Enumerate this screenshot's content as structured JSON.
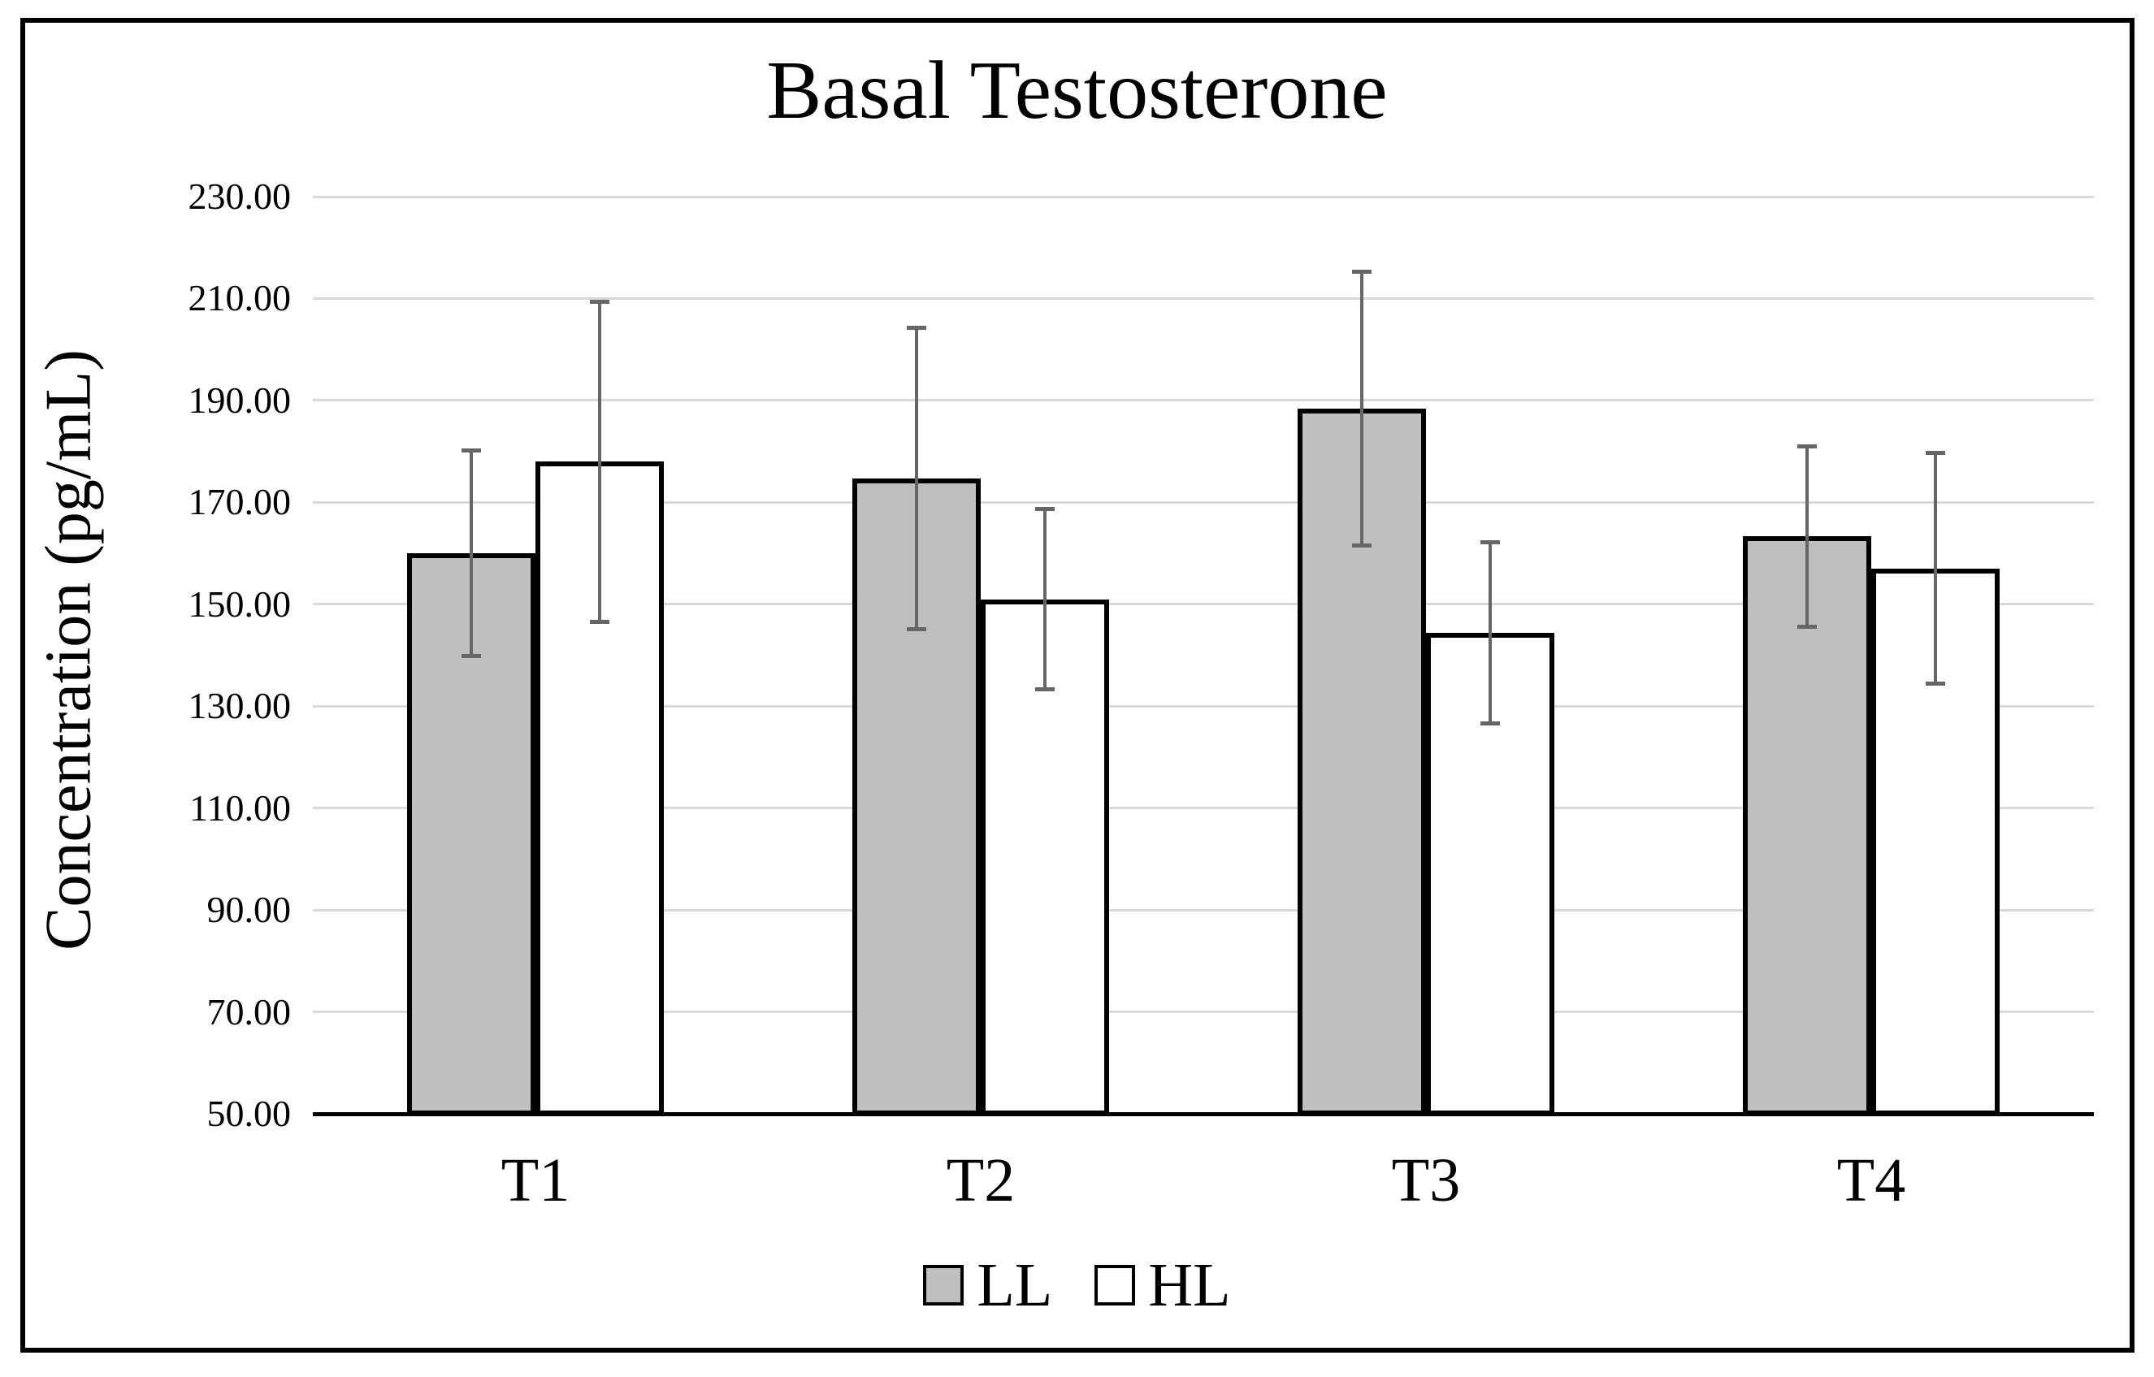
{
  "chart_data": {
    "type": "bar",
    "title": "Basal Testosterone",
    "xlabel": "",
    "ylabel": "Concentration (pg/mL)",
    "categories": [
      "T1",
      "T2",
      "T3",
      "T4"
    ],
    "series": [
      {
        "name": "LL",
        "fill": "#bfbfbf",
        "values": [
          160.0,
          174.7,
          188.4,
          163.3
        ],
        "errors": [
          20.2,
          29.7,
          27.0,
          17.8
        ]
      },
      {
        "name": "HL",
        "fill": "#ffffff",
        "values": [
          178.0,
          151.0,
          144.4,
          157.0
        ],
        "errors": [
          31.5,
          17.7,
          17.8,
          22.7
        ]
      }
    ],
    "ylim": [
      50,
      230
    ],
    "ytick_step": 20,
    "ytick_labels": [
      "50.00",
      "70.00",
      "90.00",
      "110.00",
      "130.00",
      "150.00",
      "170.00",
      "190.00",
      "210.00",
      "230.00"
    ],
    "grid": true,
    "legend_position": "bottom",
    "error_bars": true
  },
  "colors": {
    "ll_fill": "#bfbfbf",
    "hl_fill": "#ffffff",
    "bar_border": "#000000",
    "error_bar": "#666666",
    "gridline": "#d9d9d9",
    "axis": "#000000",
    "text": "#000000",
    "background": "#ffffff",
    "frame_border": "#000000"
  }
}
